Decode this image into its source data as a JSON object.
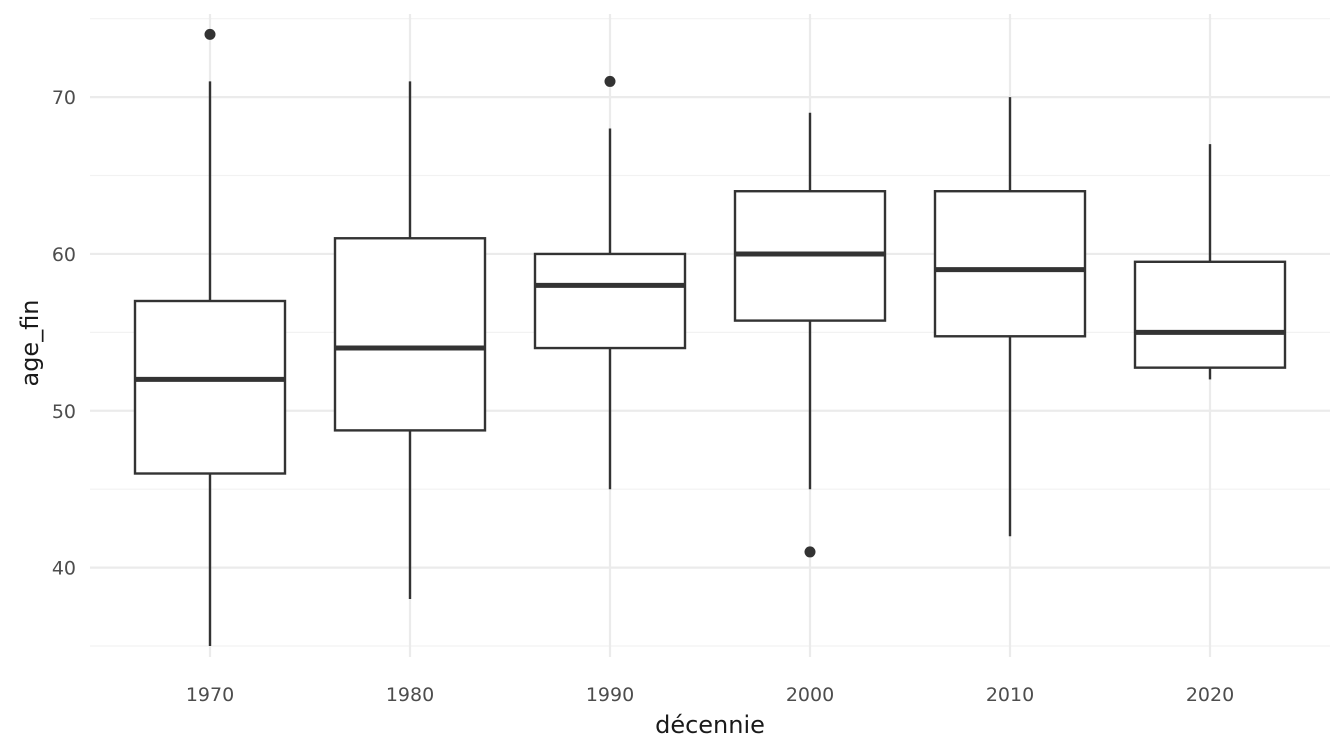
{
  "chart_data": {
    "type": "boxplot",
    "title": "",
    "xlabel": "décennie",
    "ylabel": "age_fin",
    "ylim": [
      34.3,
      75.3
    ],
    "yticks": [
      40,
      50,
      60,
      70
    ],
    "categories": [
      "1970",
      "1980",
      "1990",
      "2000",
      "2010",
      "2020"
    ],
    "boxes": [
      {
        "label": "1970",
        "whisker_low": 35,
        "q1": 46,
        "median": 52,
        "q3": 57,
        "whisker_high": 71,
        "outliers": [
          74
        ]
      },
      {
        "label": "1980",
        "whisker_low": 38,
        "q1": 48.75,
        "median": 54,
        "q3": 61,
        "whisker_high": 71,
        "outliers": []
      },
      {
        "label": "1990",
        "whisker_low": 45,
        "q1": 54,
        "median": 58,
        "q3": 60,
        "whisker_high": 68,
        "outliers": [
          71
        ]
      },
      {
        "label": "2000",
        "whisker_low": 45,
        "q1": 55.75,
        "median": 60,
        "q3": 64,
        "whisker_high": 69,
        "outliers": [
          41
        ]
      },
      {
        "label": "2010",
        "whisker_low": 42,
        "q1": 54.75,
        "median": 59,
        "q3": 64,
        "whisker_high": 70,
        "outliers": []
      },
      {
        "label": "2020",
        "whisker_low": 52,
        "q1": 52.75,
        "median": 55,
        "q3": 59.5,
        "whisker_high": 67,
        "outliers": []
      }
    ],
    "grid": true,
    "legend": "none",
    "colors": {
      "box_stroke": "#333333",
      "box_fill": "#ffffff",
      "grid_major": "#ebebeb",
      "grid_minor": "#f2f2f2"
    }
  }
}
